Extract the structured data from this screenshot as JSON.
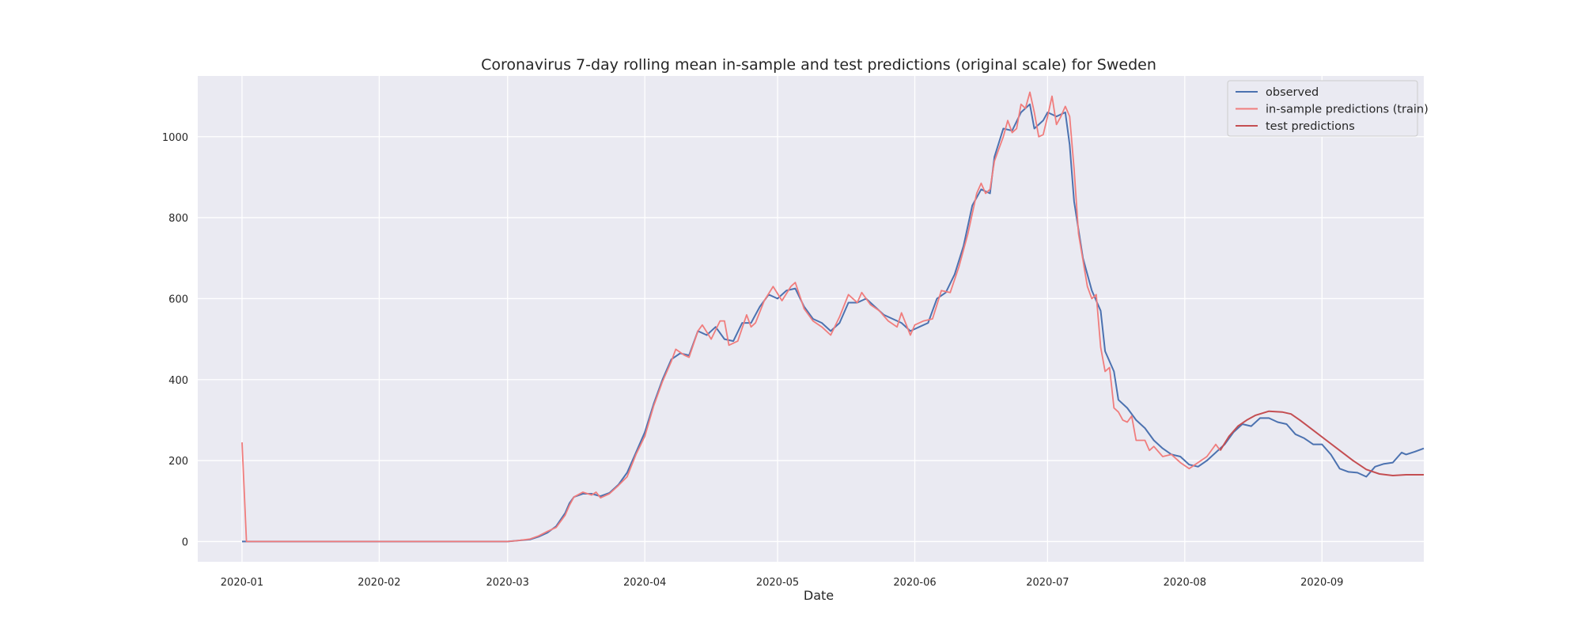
{
  "chart_data": {
    "type": "line",
    "title": "Coronavirus 7-day rolling mean in-sample and test predictions (original scale) for Sweden",
    "xlabel": "Date",
    "ylabel": "",
    "x_axis": {
      "type": "date",
      "range": [
        "2019-12-22",
        "2020-09-24"
      ]
    },
    "ylim": [
      -50,
      1150
    ],
    "xticks": [
      "2020-01",
      "2020-02",
      "2020-03",
      "2020-04",
      "2020-05",
      "2020-06",
      "2020-07",
      "2020-08",
      "2020-09"
    ],
    "yticks": [
      0,
      200,
      400,
      600,
      800,
      1000
    ],
    "grid": true,
    "legend_position": "top-right",
    "background": "#eaeaf2",
    "series": [
      {
        "name": "observed",
        "color": "#4c72b0",
        "points": [
          [
            "2020-01-01",
            0
          ],
          [
            "2020-01-15",
            0
          ],
          [
            "2020-02-01",
            0
          ],
          [
            "2020-02-15",
            0
          ],
          [
            "2020-03-01",
            0
          ],
          [
            "2020-03-03",
            2
          ],
          [
            "2020-03-06",
            5
          ],
          [
            "2020-03-08",
            12
          ],
          [
            "2020-03-10",
            22
          ],
          [
            "2020-03-12",
            38
          ],
          [
            "2020-03-14",
            70
          ],
          [
            "2020-03-15",
            95
          ],
          [
            "2020-03-16",
            110
          ],
          [
            "2020-03-18",
            118
          ],
          [
            "2020-03-20",
            118
          ],
          [
            "2020-03-22",
            112
          ],
          [
            "2020-03-24",
            120
          ],
          [
            "2020-03-26",
            140
          ],
          [
            "2020-03-28",
            170
          ],
          [
            "2020-03-30",
            220
          ],
          [
            "2020-04-01",
            270
          ],
          [
            "2020-04-03",
            340
          ],
          [
            "2020-04-05",
            400
          ],
          [
            "2020-04-07",
            450
          ],
          [
            "2020-04-09",
            465
          ],
          [
            "2020-04-11",
            460
          ],
          [
            "2020-04-13",
            520
          ],
          [
            "2020-04-15",
            510
          ],
          [
            "2020-04-17",
            530
          ],
          [
            "2020-04-19",
            500
          ],
          [
            "2020-04-21",
            495
          ],
          [
            "2020-04-23",
            540
          ],
          [
            "2020-04-25",
            540
          ],
          [
            "2020-04-27",
            580
          ],
          [
            "2020-04-29",
            610
          ],
          [
            "2020-05-01",
            600
          ],
          [
            "2020-05-03",
            620
          ],
          [
            "2020-05-05",
            625
          ],
          [
            "2020-05-07",
            580
          ],
          [
            "2020-05-09",
            550
          ],
          [
            "2020-05-11",
            540
          ],
          [
            "2020-05-13",
            520
          ],
          [
            "2020-05-15",
            540
          ],
          [
            "2020-05-17",
            590
          ],
          [
            "2020-05-19",
            590
          ],
          [
            "2020-05-21",
            600
          ],
          [
            "2020-05-23",
            580
          ],
          [
            "2020-05-25",
            560
          ],
          [
            "2020-05-27",
            550
          ],
          [
            "2020-05-29",
            540
          ],
          [
            "2020-05-31",
            520
          ],
          [
            "2020-06-02",
            530
          ],
          [
            "2020-06-04",
            540
          ],
          [
            "2020-06-06",
            600
          ],
          [
            "2020-06-08",
            615
          ],
          [
            "2020-06-10",
            660
          ],
          [
            "2020-06-12",
            730
          ],
          [
            "2020-06-14",
            830
          ],
          [
            "2020-06-16",
            870
          ],
          [
            "2020-06-18",
            860
          ],
          [
            "2020-06-19",
            950
          ],
          [
            "2020-06-21",
            1020
          ],
          [
            "2020-06-23",
            1015
          ],
          [
            "2020-06-25",
            1060
          ],
          [
            "2020-06-27",
            1080
          ],
          [
            "2020-06-28",
            1020
          ],
          [
            "2020-06-30",
            1040
          ],
          [
            "2020-07-01",
            1060
          ],
          [
            "2020-07-03",
            1050
          ],
          [
            "2020-07-05",
            1060
          ],
          [
            "2020-07-06",
            980
          ],
          [
            "2020-07-07",
            840
          ],
          [
            "2020-07-09",
            700
          ],
          [
            "2020-07-11",
            620
          ],
          [
            "2020-07-13",
            570
          ],
          [
            "2020-07-14",
            470
          ],
          [
            "2020-07-16",
            420
          ],
          [
            "2020-07-17",
            350
          ],
          [
            "2020-07-19",
            330
          ],
          [
            "2020-07-21",
            300
          ],
          [
            "2020-07-23",
            280
          ],
          [
            "2020-07-25",
            250
          ],
          [
            "2020-07-27",
            230
          ],
          [
            "2020-07-29",
            215
          ],
          [
            "2020-07-31",
            210
          ],
          [
            "2020-08-02",
            190
          ],
          [
            "2020-08-04",
            185
          ],
          [
            "2020-08-06",
            200
          ],
          [
            "2020-08-08",
            220
          ],
          [
            "2020-08-10",
            240
          ],
          [
            "2020-08-12",
            270
          ],
          [
            "2020-08-14",
            290
          ],
          [
            "2020-08-16",
            285
          ],
          [
            "2020-08-18",
            305
          ],
          [
            "2020-08-20",
            305
          ],
          [
            "2020-08-22",
            295
          ],
          [
            "2020-08-24",
            290
          ],
          [
            "2020-08-26",
            265
          ],
          [
            "2020-08-28",
            255
          ],
          [
            "2020-08-30",
            240
          ],
          [
            "2020-09-01",
            240
          ],
          [
            "2020-09-03",
            215
          ],
          [
            "2020-09-05",
            180
          ],
          [
            "2020-09-07",
            172
          ],
          [
            "2020-09-09",
            170
          ],
          [
            "2020-09-11",
            160
          ],
          [
            "2020-09-13",
            185
          ],
          [
            "2020-09-15",
            192
          ],
          [
            "2020-09-17",
            195
          ],
          [
            "2020-09-19",
            220
          ],
          [
            "2020-09-20",
            215
          ],
          [
            "2020-09-22",
            222
          ],
          [
            "2020-09-24",
            230
          ]
        ]
      },
      {
        "name": "in-sample predictions (train)",
        "color": "#f07d7d",
        "points": [
          [
            "2020-01-01",
            245
          ],
          [
            "2020-01-02",
            0
          ],
          [
            "2020-01-15",
            0
          ],
          [
            "2020-02-01",
            0
          ],
          [
            "2020-02-15",
            0
          ],
          [
            "2020-03-01",
            0
          ],
          [
            "2020-03-03",
            2
          ],
          [
            "2020-03-06",
            6
          ],
          [
            "2020-03-08",
            14
          ],
          [
            "2020-03-10",
            25
          ],
          [
            "2020-03-12",
            35
          ],
          [
            "2020-03-14",
            65
          ],
          [
            "2020-03-15",
            90
          ],
          [
            "2020-03-16",
            110
          ],
          [
            "2020-03-18",
            122
          ],
          [
            "2020-03-20",
            115
          ],
          [
            "2020-03-21",
            122
          ],
          [
            "2020-03-22",
            108
          ],
          [
            "2020-03-24",
            118
          ],
          [
            "2020-03-26",
            138
          ],
          [
            "2020-03-28",
            160
          ],
          [
            "2020-03-30",
            215
          ],
          [
            "2020-04-01",
            260
          ],
          [
            "2020-04-03",
            335
          ],
          [
            "2020-04-05",
            395
          ],
          [
            "2020-04-07",
            445
          ],
          [
            "2020-04-08",
            475
          ],
          [
            "2020-04-10",
            460
          ],
          [
            "2020-04-11",
            455
          ],
          [
            "2020-04-13",
            520
          ],
          [
            "2020-04-14",
            535
          ],
          [
            "2020-04-16",
            500
          ],
          [
            "2020-04-18",
            545
          ],
          [
            "2020-04-19",
            545
          ],
          [
            "2020-04-20",
            485
          ],
          [
            "2020-04-22",
            495
          ],
          [
            "2020-04-24",
            560
          ],
          [
            "2020-04-25",
            530
          ],
          [
            "2020-04-26",
            540
          ],
          [
            "2020-04-28",
            595
          ],
          [
            "2020-04-30",
            630
          ],
          [
            "2020-05-02",
            595
          ],
          [
            "2020-05-04",
            630
          ],
          [
            "2020-05-05",
            640
          ],
          [
            "2020-05-07",
            575
          ],
          [
            "2020-05-09",
            545
          ],
          [
            "2020-05-11",
            530
          ],
          [
            "2020-05-13",
            510
          ],
          [
            "2020-05-15",
            555
          ],
          [
            "2020-05-17",
            610
          ],
          [
            "2020-05-19",
            590
          ],
          [
            "2020-05-20",
            615
          ],
          [
            "2020-05-22",
            585
          ],
          [
            "2020-05-24",
            570
          ],
          [
            "2020-05-26",
            545
          ],
          [
            "2020-05-28",
            530
          ],
          [
            "2020-05-29",
            565
          ],
          [
            "2020-05-31",
            510
          ],
          [
            "2020-06-01",
            535
          ],
          [
            "2020-06-03",
            545
          ],
          [
            "2020-06-05",
            550
          ],
          [
            "2020-06-07",
            620
          ],
          [
            "2020-06-09",
            615
          ],
          [
            "2020-06-11",
            680
          ],
          [
            "2020-06-13",
            760
          ],
          [
            "2020-06-15",
            860
          ],
          [
            "2020-06-16",
            885
          ],
          [
            "2020-06-17",
            860
          ],
          [
            "2020-06-18",
            870
          ],
          [
            "2020-06-19",
            940
          ],
          [
            "2020-06-21",
            1000
          ],
          [
            "2020-06-22",
            1040
          ],
          [
            "2020-06-23",
            1010
          ],
          [
            "2020-06-24",
            1020
          ],
          [
            "2020-06-25",
            1080
          ],
          [
            "2020-06-26",
            1070
          ],
          [
            "2020-06-27",
            1110
          ],
          [
            "2020-06-28",
            1060
          ],
          [
            "2020-06-29",
            1000
          ],
          [
            "2020-06-30",
            1005
          ],
          [
            "2020-07-01",
            1050
          ],
          [
            "2020-07-02",
            1100
          ],
          [
            "2020-07-03",
            1030
          ],
          [
            "2020-07-04",
            1050
          ],
          [
            "2020-07-05",
            1075
          ],
          [
            "2020-07-06",
            1050
          ],
          [
            "2020-07-07",
            920
          ],
          [
            "2020-07-08",
            760
          ],
          [
            "2020-07-10",
            630
          ],
          [
            "2020-07-11",
            600
          ],
          [
            "2020-07-12",
            610
          ],
          [
            "2020-07-13",
            480
          ],
          [
            "2020-07-14",
            420
          ],
          [
            "2020-07-15",
            430
          ],
          [
            "2020-07-16",
            330
          ],
          [
            "2020-07-17",
            320
          ],
          [
            "2020-07-18",
            300
          ],
          [
            "2020-07-19",
            295
          ],
          [
            "2020-07-20",
            310
          ],
          [
            "2020-07-21",
            250
          ],
          [
            "2020-07-23",
            250
          ],
          [
            "2020-07-24",
            225
          ],
          [
            "2020-07-25",
            235
          ],
          [
            "2020-07-27",
            210
          ],
          [
            "2020-07-29",
            215
          ],
          [
            "2020-07-31",
            195
          ],
          [
            "2020-08-02",
            180
          ],
          [
            "2020-08-04",
            195
          ],
          [
            "2020-08-06",
            210
          ],
          [
            "2020-08-08",
            240
          ],
          [
            "2020-08-09",
            225
          ]
        ]
      },
      {
        "name": "test predictions",
        "color": "#c44e52",
        "points": [
          [
            "2020-08-09",
            225
          ],
          [
            "2020-08-11",
            260
          ],
          [
            "2020-08-13",
            285
          ],
          [
            "2020-08-15",
            300
          ],
          [
            "2020-08-17",
            312
          ],
          [
            "2020-08-20",
            322
          ],
          [
            "2020-08-23",
            320
          ],
          [
            "2020-08-25",
            315
          ],
          [
            "2020-08-27",
            300
          ],
          [
            "2020-08-30",
            275
          ],
          [
            "2020-09-02",
            250
          ],
          [
            "2020-09-05",
            225
          ],
          [
            "2020-09-08",
            200
          ],
          [
            "2020-09-11",
            178
          ],
          [
            "2020-09-14",
            167
          ],
          [
            "2020-09-17",
            163
          ],
          [
            "2020-09-20",
            165
          ],
          [
            "2020-09-24",
            165
          ]
        ]
      }
    ]
  }
}
